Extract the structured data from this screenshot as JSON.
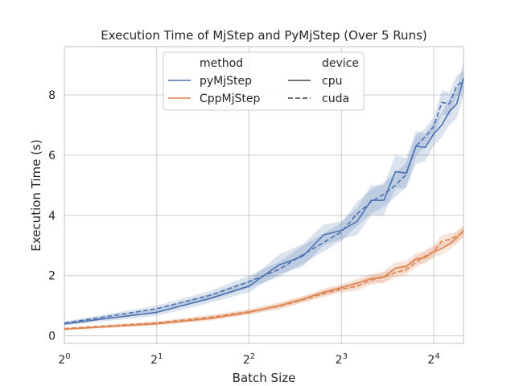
{
  "chart_data": {
    "type": "line",
    "title": "Execution Time of MjStep and PyMjStep (Over 5 Runs)",
    "xlabel": "Batch Size",
    "ylabel": "Execution Time (s)",
    "x_scale": "log2",
    "xlim": [
      1,
      20
    ],
    "ylim": [
      -0.25,
      9.6
    ],
    "x_ticks": [
      {
        "value": 1,
        "base": "2",
        "exp": "0"
      },
      {
        "value": 2,
        "base": "2",
        "exp": "1"
      },
      {
        "value": 4,
        "base": "2",
        "exp": "2"
      },
      {
        "value": 8,
        "base": "2",
        "exp": "3"
      },
      {
        "value": 16,
        "base": "2",
        "exp": "4"
      }
    ],
    "y_ticks": [
      "0",
      "2",
      "4",
      "6",
      "8"
    ],
    "grid": true,
    "legend": {
      "placement": "top-center",
      "hue_title": "method",
      "style_title": "device",
      "methods": [
        {
          "label": "pyMjStep",
          "color": "#4c72b0"
        },
        {
          "label": "CppMjStep",
          "color": "#dd8452"
        }
      ],
      "devices": [
        {
          "label": "cpu",
          "dash": "solid"
        },
        {
          "label": "cuda",
          "dash": "dashed"
        }
      ]
    },
    "x": [
      1,
      2,
      3,
      4,
      5,
      6,
      7,
      8,
      9,
      10,
      11,
      12,
      13,
      14,
      15,
      16,
      17,
      18,
      19,
      20
    ],
    "series": [
      {
        "method": "pyMjStep",
        "device": "cpu",
        "color": "#4c72b0",
        "dash": "solid",
        "values": [
          0.4,
          0.78,
          1.25,
          1.65,
          2.35,
          2.65,
          3.35,
          3.5,
          3.8,
          4.5,
          4.5,
          5.45,
          5.4,
          6.3,
          6.25,
          6.7,
          7.0,
          7.45,
          7.7,
          8.55
        ],
        "ci_low": [
          0.34,
          0.66,
          1.1,
          1.45,
          2.05,
          2.3,
          3.0,
          3.2,
          3.35,
          4.0,
          4.0,
          4.9,
          4.9,
          5.7,
          5.8,
          6.3,
          6.6,
          7.0,
          7.2,
          8.0
        ],
        "ci_high": [
          0.46,
          0.9,
          1.4,
          1.85,
          2.7,
          3.05,
          3.7,
          3.8,
          4.25,
          5.0,
          5.0,
          6.0,
          5.9,
          6.8,
          6.7,
          7.1,
          7.4,
          7.9,
          8.2,
          9.1
        ]
      },
      {
        "method": "pyMjStep",
        "device": "cuda",
        "color": "#4c72b0",
        "dash": "dashed",
        "values": [
          0.42,
          0.9,
          1.35,
          1.8,
          2.2,
          2.7,
          3.1,
          3.45,
          4.05,
          4.45,
          4.7,
          5.0,
          5.35,
          6.3,
          6.6,
          6.95,
          7.75,
          7.7,
          8.3,
          8.45
        ],
        "ci_low": [
          0.36,
          0.8,
          1.2,
          1.6,
          1.95,
          2.4,
          2.8,
          3.15,
          3.65,
          4.05,
          4.3,
          4.6,
          4.95,
          5.95,
          6.3,
          6.65,
          7.35,
          7.3,
          7.95,
          8.1
        ],
        "ci_high": [
          0.48,
          1.0,
          1.5,
          2.0,
          2.45,
          3.0,
          3.4,
          3.75,
          4.45,
          4.85,
          5.1,
          5.4,
          5.75,
          6.65,
          6.9,
          7.25,
          8.15,
          8.1,
          8.65,
          8.8
        ]
      },
      {
        "method": "CppMjStep",
        "device": "cpu",
        "color": "#dd8452",
        "dash": "solid",
        "values": [
          0.22,
          0.4,
          0.58,
          0.78,
          1.0,
          1.22,
          1.45,
          1.6,
          1.75,
          1.9,
          1.95,
          2.25,
          2.3,
          2.55,
          2.6,
          2.8,
          2.9,
          3.05,
          3.25,
          3.5
        ],
        "ci_low": [
          0.18,
          0.34,
          0.5,
          0.7,
          0.9,
          1.12,
          1.33,
          1.48,
          1.6,
          1.75,
          1.75,
          2.05,
          2.1,
          2.35,
          2.4,
          2.6,
          2.7,
          2.85,
          3.05,
          3.3
        ],
        "ci_high": [
          0.26,
          0.46,
          0.66,
          0.86,
          1.1,
          1.32,
          1.57,
          1.72,
          1.9,
          2.05,
          2.15,
          2.45,
          2.5,
          2.75,
          2.8,
          3.0,
          3.1,
          3.25,
          3.45,
          3.7
        ]
      },
      {
        "method": "CppMjStep",
        "device": "cuda",
        "color": "#dd8452",
        "dash": "dashed",
        "values": [
          0.24,
          0.43,
          0.62,
          0.8,
          0.98,
          1.2,
          1.4,
          1.55,
          1.65,
          1.85,
          1.95,
          2.1,
          2.2,
          2.45,
          2.65,
          2.8,
          3.15,
          3.2,
          3.3,
          3.45
        ],
        "ci_low": [
          0.2,
          0.37,
          0.54,
          0.72,
          0.88,
          1.1,
          1.28,
          1.43,
          1.5,
          1.7,
          1.78,
          1.92,
          2.02,
          2.27,
          2.47,
          2.62,
          2.95,
          3.0,
          3.12,
          3.28
        ],
        "ci_high": [
          0.28,
          0.49,
          0.7,
          0.88,
          1.08,
          1.3,
          1.52,
          1.67,
          1.8,
          2.0,
          2.12,
          2.28,
          2.38,
          2.63,
          2.83,
          2.98,
          3.35,
          3.4,
          3.48,
          3.62
        ]
      }
    ]
  }
}
